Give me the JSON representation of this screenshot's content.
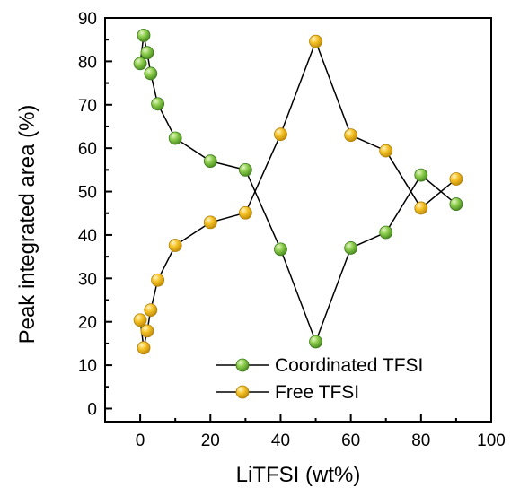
{
  "chart_data": {
    "type": "line",
    "title": "",
    "xlabel": "LiTFSI (wt%)",
    "ylabel": "Peak integrated area (%)",
    "xlim": [
      -10,
      100
    ],
    "ylim": [
      -3,
      90
    ],
    "xticks": [
      0,
      20,
      40,
      60,
      80,
      100
    ],
    "yticks": [
      0,
      10,
      20,
      30,
      40,
      50,
      60,
      70,
      80,
      90
    ],
    "grid": false,
    "legend_position": "bottom-right",
    "series": [
      {
        "name": "Coordinated TFSI",
        "color": "#7cc142",
        "x": [
          0,
          1,
          2,
          3,
          5,
          10,
          20,
          30,
          40,
          50,
          60,
          70,
          80,
          90
        ],
        "y": [
          79.5,
          86,
          82,
          77.2,
          70.2,
          62.3,
          57,
          55,
          36.7,
          15.4,
          37,
          40.6,
          53.8,
          47.1
        ]
      },
      {
        "name": "Free TFSI",
        "color": "#f4c01e",
        "x": [
          0,
          1,
          2,
          3,
          5,
          10,
          20,
          30,
          40,
          50,
          60,
          70,
          80,
          90
        ],
        "y": [
          20.4,
          14,
          17.9,
          22.7,
          29.6,
          37.6,
          42.9,
          45.1,
          63.2,
          84.6,
          63,
          59.4,
          46.2,
          52.9
        ]
      }
    ]
  }
}
